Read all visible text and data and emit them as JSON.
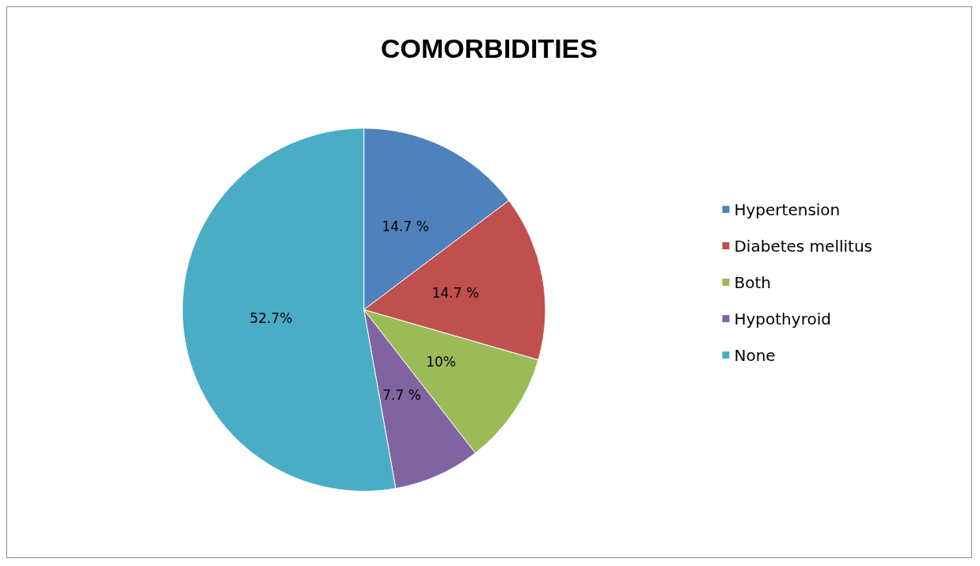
{
  "chart_data": {
    "type": "pie",
    "title": "COMORBIDITIES",
    "categories": [
      "Hypertension",
      "Diabetes mellitus",
      "Both",
      "Hypothyroid",
      "None"
    ],
    "values": [
      14.7,
      14.7,
      10,
      7.7,
      52.7
    ],
    "colors": [
      "#4f81bd",
      "#c0504d",
      "#9bbb59",
      "#8064a2",
      "#4bacc6"
    ],
    "value_labels": [
      "14.7 %",
      "14.7 %",
      "10%",
      "7.7 %",
      "52.7%"
    ],
    "legend": "right"
  }
}
